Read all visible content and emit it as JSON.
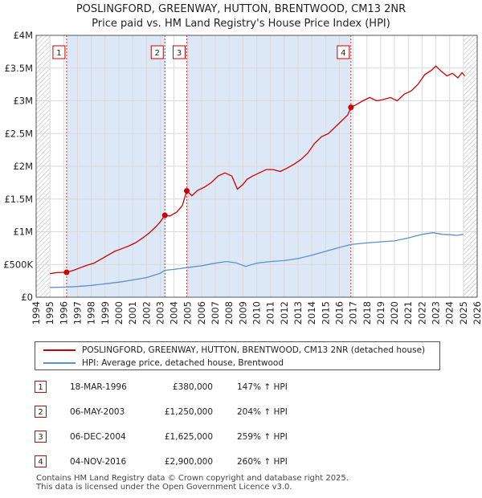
{
  "title_line1": "POSLINGFORD, GREENWAY, HUTTON, BRENTWOOD, CM13 2NR",
  "title_line2": "Price paid vs. HM Land Registry's House Price Index (HPI)",
  "colors": {
    "property": "#cc0000",
    "hpi": "#5b8fd0",
    "shade": "#dde8f7",
    "grid": "#d9d9d9"
  },
  "chart_data": {
    "type": "line",
    "xlim": [
      1994,
      2026
    ],
    "ylim": [
      0,
      4000000
    ],
    "y_ticks": [
      0,
      500000,
      1000000,
      1500000,
      2000000,
      2500000,
      3000000,
      3500000,
      4000000
    ],
    "y_tick_labels": [
      "£0",
      "£500K",
      "£1M",
      "£1.5M",
      "£2M",
      "£2.5M",
      "£3M",
      "£3.5M",
      "£4M"
    ],
    "x_ticks": [
      1994,
      1995,
      1996,
      1997,
      1998,
      1999,
      2000,
      2001,
      2002,
      2003,
      2004,
      2005,
      2006,
      2007,
      2008,
      2009,
      2010,
      2011,
      2012,
      2013,
      2014,
      2015,
      2016,
      2017,
      2018,
      2019,
      2020,
      2021,
      2022,
      2023,
      2024,
      2025,
      2026
    ],
    "x_tick_labels": [
      "1994",
      "1995",
      "1996",
      "1997",
      "1998",
      "1999",
      "2000",
      "2001",
      "2002",
      "2003",
      "2004",
      "2005",
      "2006",
      "2007",
      "2008",
      "2009",
      "2010",
      "2011",
      "2012",
      "2013",
      "2014",
      "2015",
      "2016",
      "2017",
      "2018",
      "2019",
      "2020",
      "2021",
      "2022",
      "2023",
      "2024",
      "2025",
      "2026"
    ],
    "shaded_ranges": [
      [
        1996.21,
        2003.34
      ],
      [
        2004.93,
        2016.84
      ]
    ],
    "hatched_ranges": [
      [
        1994,
        1995
      ],
      [
        2025,
        2026
      ]
    ],
    "series": [
      {
        "name": "POSLINGFORD, GREENWAY, HUTTON, BRENTWOOD, CM13 2NR (detached house)",
        "x": [
          1995.0,
          1995.5,
          1996.21,
          1996.7,
          1997.2,
          1997.7,
          1998.2,
          1998.7,
          1999.2,
          1999.7,
          2000.2,
          2000.7,
          2001.2,
          2001.7,
          2002.2,
          2002.7,
          2003.0,
          2003.34,
          2003.34,
          2003.7,
          2004.2,
          2004.6,
          2004.93,
          2004.93,
          2005.3,
          2005.7,
          2006.2,
          2006.7,
          2007.2,
          2007.7,
          2008.2,
          2008.6,
          2009.0,
          2009.3,
          2009.7,
          2010.2,
          2010.7,
          2011.2,
          2011.7,
          2012.2,
          2012.7,
          2013.2,
          2013.7,
          2014.2,
          2014.7,
          2015.2,
          2015.7,
          2016.2,
          2016.6,
          2016.84,
          2016.84,
          2017.3,
          2017.7,
          2018.2,
          2018.7,
          2019.2,
          2019.7,
          2020.2,
          2020.7,
          2021.2,
          2021.7,
          2022.2,
          2022.7,
          2023.0,
          2023.4,
          2023.8,
          2024.2,
          2024.6,
          2024.9,
          2025.1
        ],
        "values": [
          360000,
          375000,
          380000,
          410000,
          450000,
          490000,
          520000,
          580000,
          640000,
          700000,
          740000,
          780000,
          830000,
          900000,
          980000,
          1080000,
          1150000,
          1250000,
          1250000,
          1240000,
          1300000,
          1400000,
          1625000,
          1625000,
          1550000,
          1630000,
          1680000,
          1750000,
          1850000,
          1900000,
          1850000,
          1650000,
          1720000,
          1800000,
          1850000,
          1900000,
          1950000,
          1950000,
          1920000,
          1970000,
          2030000,
          2100000,
          2200000,
          2350000,
          2450000,
          2500000,
          2600000,
          2700000,
          2780000,
          2900000,
          2900000,
          2950000,
          3000000,
          3050000,
          3000000,
          3020000,
          3050000,
          3000000,
          3100000,
          3150000,
          3250000,
          3400000,
          3470000,
          3530000,
          3450000,
          3380000,
          3420000,
          3350000,
          3430000,
          3380000
        ]
      },
      {
        "name": "HPI: Average price, detached house, Brentwood",
        "x": [
          1995.0,
          1995.5,
          1996.21,
          1997.0,
          1998.0,
          1999.0,
          2000.0,
          2001.0,
          2002.0,
          2003.0,
          2003.34,
          2004.0,
          2004.93,
          2006.0,
          2007.0,
          2007.8,
          2008.5,
          2009.2,
          2010.0,
          2011.0,
          2012.0,
          2013.0,
          2014.0,
          2015.0,
          2016.0,
          2016.84,
          2018.0,
          2019.0,
          2020.0,
          2021.0,
          2022.0,
          2022.8,
          2023.5,
          2024.0,
          2024.5,
          2025.0
        ],
        "values": [
          148000,
          151000,
          154000,
          163000,
          180000,
          205000,
          230000,
          262000,
          300000,
          365000,
          411000,
          425000,
          452000,
          480000,
          520000,
          545000,
          525000,
          470000,
          520000,
          545000,
          560000,
          590000,
          640000,
          700000,
          760000,
          805000,
          830000,
          845000,
          860000,
          905000,
          960000,
          985000,
          960000,
          955000,
          945000,
          960000
        ]
      }
    ],
    "sales": [
      {
        "label": "1",
        "x": 1996.21,
        "value": 380000
      },
      {
        "label": "2",
        "x": 2003.34,
        "value": 1250000
      },
      {
        "label": "3",
        "x": 2004.93,
        "value": 1625000
      },
      {
        "label": "4",
        "x": 2016.84,
        "value": 2900000
      }
    ]
  },
  "legend": {
    "property": "POSLINGFORD, GREENWAY, HUTTON, BRENTWOOD, CM13 2NR (detached house)",
    "hpi": "HPI: Average price, detached house, Brentwood"
  },
  "sales_table": [
    {
      "num": "1",
      "date": "18-MAR-1996",
      "price": "£380,000",
      "hpi": "147% ↑ HPI"
    },
    {
      "num": "2",
      "date": "06-MAY-2003",
      "price": "£1,250,000",
      "hpi": "204% ↑ HPI"
    },
    {
      "num": "3",
      "date": "06-DEC-2004",
      "price": "£1,625,000",
      "hpi": "259% ↑ HPI"
    },
    {
      "num": "4",
      "date": "04-NOV-2016",
      "price": "£2,900,000",
      "hpi": "260% ↑ HPI"
    }
  ],
  "footer_line1": "Contains HM Land Registry data © Crown copyright and database right 2025.",
  "footer_line2": "This data is licensed under the Open Government Licence v3.0."
}
